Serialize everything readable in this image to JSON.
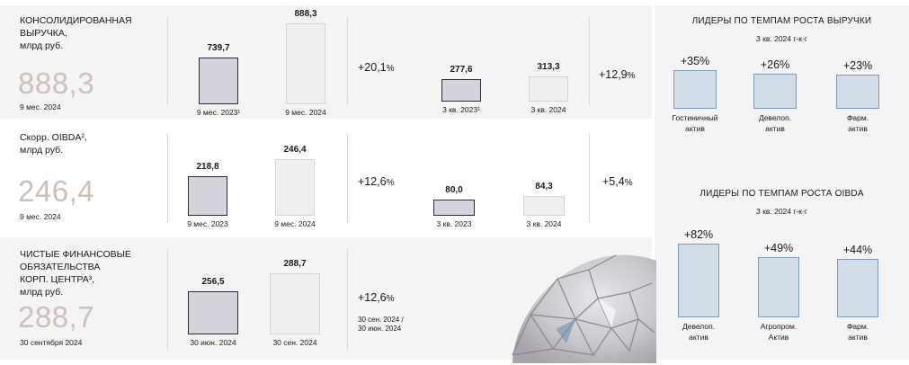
{
  "rows": [
    {
      "title_lines": [
        "КОНСОЛИДИРОВАННАЯ",
        "ВЫРУЧКА,",
        "млрд руб."
      ],
      "big_value": "888,3",
      "period": "9 мес. 2024",
      "chart_data": {
        "type": "bar",
        "categories": [
          "9 мес. 2023¹",
          "9 мес. 2024"
        ],
        "values": [
          739.7,
          888.3
        ],
        "value_labels": [
          "739,7",
          "888,3"
        ]
      },
      "growth_main": "+20,1",
      "growth_unit": "%",
      "chart_data_q": {
        "type": "bar",
        "categories": [
          "3 кв. 2023¹",
          "3 кв. 2024"
        ],
        "values": [
          277.6,
          313.3
        ],
        "value_labels": [
          "277,6",
          "313,3"
        ]
      },
      "growth_q": "+12,9",
      "growth_q_unit": "%"
    },
    {
      "title_lines": [
        "Скорр. OIBDA²,",
        "млрд руб."
      ],
      "big_value": "246,4",
      "period": "9 мес. 2024",
      "chart_data": {
        "type": "bar",
        "categories": [
          "9 мес. 2023",
          "9 мес. 2024"
        ],
        "values": [
          218.8,
          246.4
        ],
        "value_labels": [
          "218,8",
          "246,4"
        ]
      },
      "growth_main": "+12,6",
      "growth_unit": "%",
      "chart_data_q": {
        "type": "bar",
        "categories": [
          "3 кв. 2023",
          "3 кв. 2024"
        ],
        "values": [
          80.0,
          84.3
        ],
        "value_labels": [
          "80,0",
          "84,3"
        ]
      },
      "growth_q": "+5,4",
      "growth_q_unit": "%"
    },
    {
      "title_lines": [
        "ЧИСТЫЕ ФИНАНСОВЫЕ",
        "ОБЯЗАТЕЛЬСТВА",
        "КОРП. ЦЕНТРА³,",
        "млрд руб."
      ],
      "big_value": "288,7",
      "period": "30 сентября 2024",
      "chart_data": {
        "type": "bar",
        "categories": [
          "30 июн. 2024",
          "30 сен. 2024"
        ],
        "values": [
          256.5,
          288.7
        ],
        "value_labels": [
          "256,5",
          "288,7"
        ]
      },
      "growth_main": "+12,6",
      "growth_unit": "%",
      "growth_note_lines": [
        "30 сен. 2024 /",
        "30 июн. 2024"
      ]
    }
  ],
  "leaders_revenue": {
    "title": "ЛИДЕРЫ ПО ТЕМПАМ РОСТА ВЫРУЧКИ",
    "subtitle": "3 кв. 2024 г-к-г",
    "chart_data": {
      "type": "bar",
      "categories": [
        [
          "Гостиничный",
          "актив"
        ],
        [
          "Девелоп.",
          "актив"
        ],
        [
          "Фарм.",
          "актив"
        ]
      ],
      "values": [
        35,
        26,
        23
      ],
      "value_labels": [
        "+35%",
        "+26%",
        "+23%"
      ]
    }
  },
  "leaders_oibda": {
    "title": "ЛИДЕРЫ ПО ТЕМПАМ РОСТА OIBDA",
    "subtitle": "3 кв. 2024 г-к-г",
    "chart_data": {
      "type": "bar",
      "categories": [
        [
          "Девелоп.",
          "актив"
        ],
        [
          "Агропром.",
          "Актив"
        ],
        [
          "Фарм.",
          "актив"
        ]
      ],
      "values": [
        82,
        49,
        44
      ],
      "value_labels": [
        "+82%",
        "+49%",
        "+44%"
      ]
    }
  },
  "colors": {
    "big_value": "#cdbfb9",
    "dark_bar_fill": "#d3d4db",
    "dark_bar_stroke": "#2b2d3a",
    "light_bar_fill": "#f1efee",
    "leader_bar_fill": "#d3dde9",
    "leader_bar_stroke": "#7f98b8"
  }
}
